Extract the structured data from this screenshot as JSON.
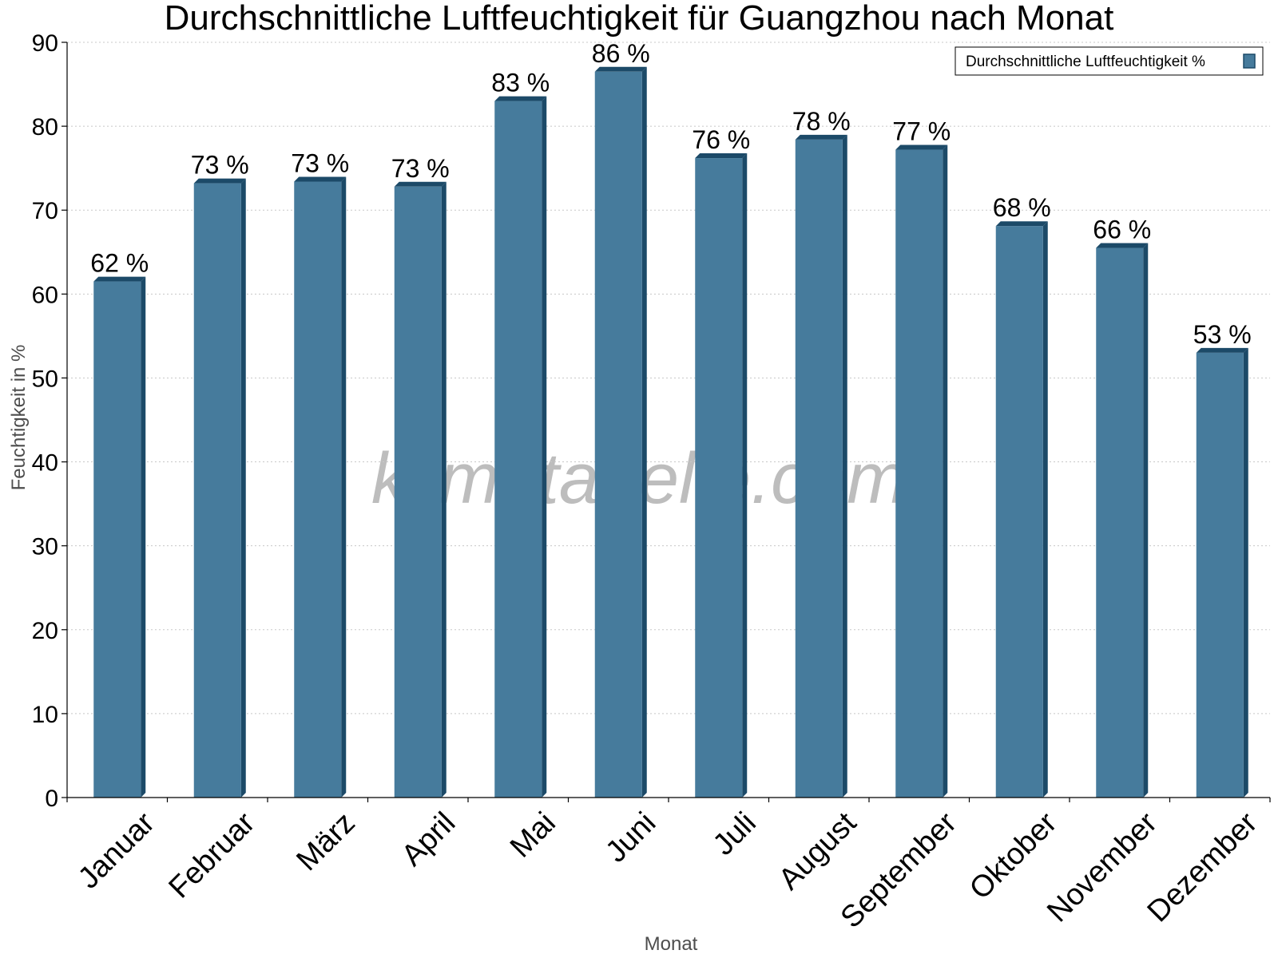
{
  "chart_data": {
    "type": "bar",
    "title": "Durchschnittliche Luftfeuchtigkeit für Guangzhou nach Monat",
    "xlabel": "Monat",
    "ylabel": "Feuchtigkeit in %",
    "ylim": [
      0,
      90
    ],
    "yticks": [
      "0",
      "10",
      "20",
      "30",
      "40",
      "50",
      "60",
      "70",
      "80",
      "90"
    ],
    "grid": true,
    "legend_position": "top-right",
    "categories": [
      "Januar",
      "Februar",
      "März",
      "April",
      "Mai",
      "Juni",
      "Juli",
      "August",
      "September",
      "Oktober",
      "November",
      "Dezember"
    ],
    "series": [
      {
        "name": "Durchschnittliche Luftfeuchtigkeit %",
        "values": [
          61.5,
          73.2,
          73.4,
          72.8,
          83.0,
          86.5,
          76.2,
          78.4,
          77.2,
          68.1,
          65.5,
          53.0
        ],
        "labels": [
          "62 %",
          "73 %",
          "73 %",
          "73 %",
          "83 %",
          "86 %",
          "76 %",
          "78 %",
          "77 %",
          "68 %",
          "66 %",
          "53 %"
        ],
        "color": "#467b9c",
        "side_color": "#1c4a68"
      }
    ],
    "watermark": "klimatabelle.com"
  }
}
